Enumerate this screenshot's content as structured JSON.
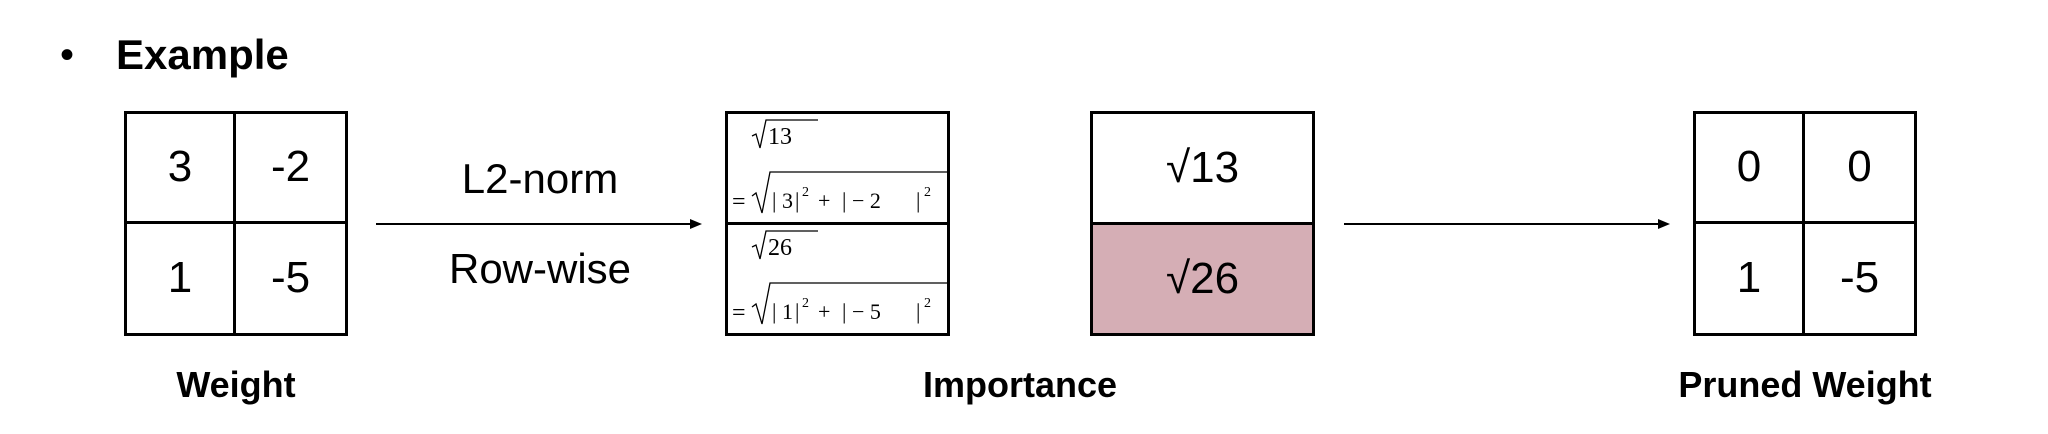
{
  "heading": {
    "bullet": "•",
    "text": "Example"
  },
  "weight": {
    "cells": [
      [
        "3",
        "-2"
      ],
      [
        "1",
        "-5"
      ]
    ],
    "caption": "Weight"
  },
  "arrow1": {
    "label_top": "L2-norm",
    "label_bottom": "Row-wise"
  },
  "formulas": [
    {
      "result_radicand": "13",
      "first_term": "3",
      "second_term": "− 2"
    },
    {
      "result_radicand": "26",
      "first_term": "1",
      "second_term": "− 5"
    }
  ],
  "importance": {
    "values": [
      "√13",
      "√26"
    ],
    "highlight_color": "#d5aeb5",
    "caption": "Importance"
  },
  "pruned": {
    "cells": [
      [
        "0",
        "0"
      ],
      [
        "1",
        "-5"
      ]
    ],
    "caption": "Pruned Weight"
  }
}
